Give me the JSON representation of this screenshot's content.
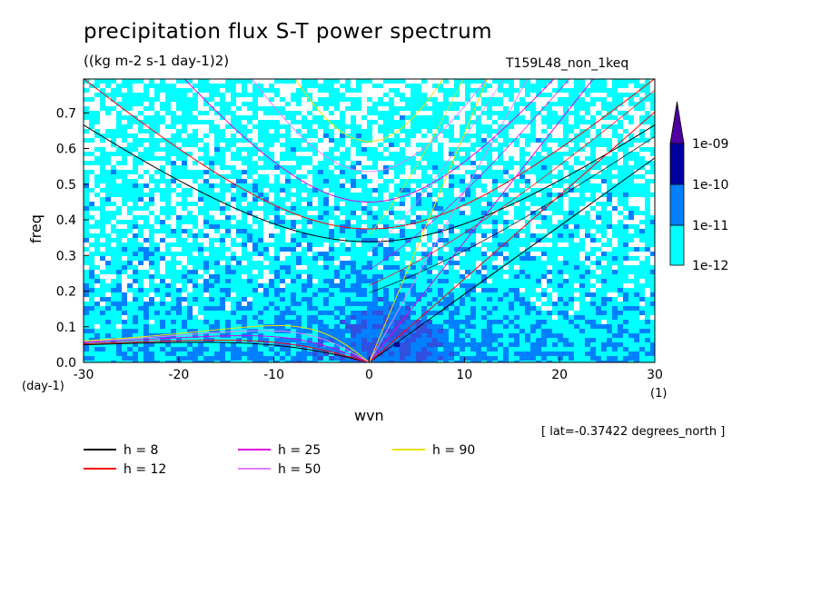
{
  "title": "precipitation flux S-T power spectrum",
  "units": "((kg m-2 s-1 day-1)2)",
  "run_name": "T159L48_non_1keq",
  "lat_note": "[ lat=-0.37422 degrees_north ]",
  "chart_data": {
    "type": "heatmap",
    "title": "precipitation flux S-T power spectrum",
    "xlabel": "wvn",
    "ylabel": "freq",
    "x_unit": "(1)",
    "y_unit": "(day-1)",
    "xlim": [
      -30,
      30
    ],
    "ylim": [
      0,
      0.8
    ],
    "x_ticks": [
      "-30",
      "-20",
      "-10",
      "0",
      "10",
      "20",
      "30"
    ],
    "y_ticks": [
      "0.0",
      "0.1",
      "0.2",
      "0.3",
      "0.4",
      "0.5",
      "0.6",
      "0.7"
    ],
    "colorbar": {
      "levels": [
        "1e-12",
        "1e-11",
        "1e-10",
        "1e-09"
      ],
      "colors": [
        "#ffffff",
        "#00ffff",
        "#0080ff",
        "#3050e0",
        "#0000a0",
        "#5000a0"
      ]
    },
    "dispersion_curves": [
      {
        "label": "h =  8",
        "h": 8,
        "color": "#000000"
      },
      {
        "label": "h = 12",
        "h": 12,
        "color": "#ff0000"
      },
      {
        "label": "h = 25",
        "h": 25,
        "color": "#e000e0"
      },
      {
        "label": "h = 50",
        "h": 50,
        "color": "#e080ff"
      },
      {
        "label": "h = 90",
        "h": 90,
        "color": "#f0e000"
      }
    ]
  }
}
